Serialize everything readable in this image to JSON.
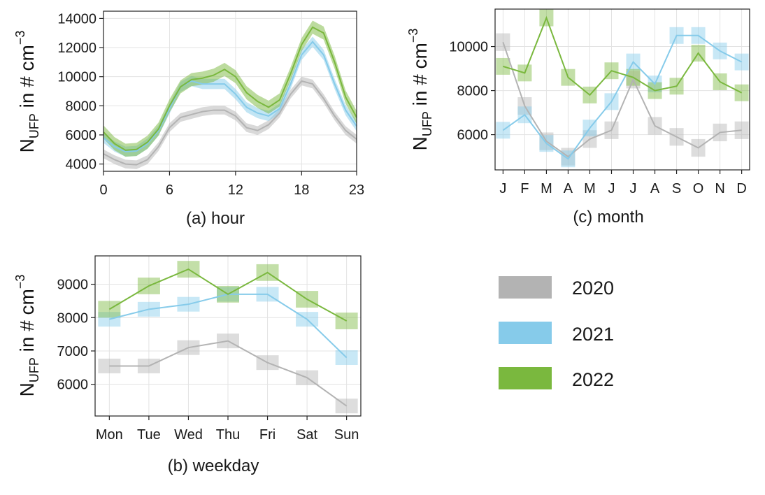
{
  "colors": {
    "2020": "#b3b3b3",
    "2021": "#86cbea",
    "2022": "#7ab83e"
  },
  "legend": {
    "position": "right-bottom",
    "items": [
      {
        "label": "2020",
        "color": "#b3b3b3"
      },
      {
        "label": "2021",
        "color": "#86cbea"
      },
      {
        "label": "2022",
        "color": "#7ab83e"
      }
    ]
  },
  "y_label": {
    "main": "N",
    "sub": "UFP",
    "mid": " in # cm",
    "sup": "−3"
  },
  "chart_data": [
    {
      "id": "hour",
      "type": "area",
      "panel_tag": "(a)",
      "xlabel": "hour",
      "ylabel": "N_UFP in # cm^-3",
      "x": [
        0,
        1,
        2,
        3,
        4,
        5,
        6,
        7,
        8,
        9,
        10,
        11,
        12,
        13,
        14,
        15,
        16,
        17,
        18,
        19,
        20,
        21,
        22,
        23
      ],
      "xticks": [
        0,
        6,
        12,
        18,
        23
      ],
      "xlim": [
        0,
        23
      ],
      "yticks": [
        4000,
        6000,
        8000,
        10000,
        12000,
        14000
      ],
      "ylim": [
        3500,
        14500
      ],
      "grid": true,
      "series": [
        {
          "name": "2020",
          "values": [
            4700,
            4300,
            4000,
            3950,
            4300,
            5200,
            6500,
            7200,
            7400,
            7600,
            7700,
            7700,
            7300,
            6500,
            6300,
            6700,
            7500,
            8800,
            9700,
            9500,
            8500,
            7300,
            6300,
            5700
          ],
          "band": 300
        },
        {
          "name": "2021",
          "values": [
            5800,
            5200,
            4850,
            4900,
            5400,
            6300,
            7800,
            9300,
            9700,
            9500,
            9500,
            9500,
            8800,
            7900,
            7500,
            7300,
            7800,
            9500,
            11500,
            12400,
            11500,
            9500,
            7700,
            6600
          ],
          "band": 350
        },
        {
          "name": "2022",
          "values": [
            6200,
            5400,
            4950,
            5000,
            5500,
            6400,
            8000,
            9300,
            9800,
            9900,
            10100,
            10500,
            10000,
            8900,
            8300,
            7900,
            8400,
            10200,
            12200,
            13400,
            13000,
            11000,
            8600,
            7200
          ],
          "band": 450
        }
      ]
    },
    {
      "id": "weekday",
      "type": "line",
      "panel_tag": "(b)",
      "xlabel": "weekday",
      "ylabel": "N_UFP in # cm^-3",
      "categories": [
        "Mon",
        "Tue",
        "Wed",
        "Thu",
        "Fri",
        "Sat",
        "Sun"
      ],
      "yticks": [
        6000,
        7000,
        8000,
        9000
      ],
      "ylim": [
        5050,
        9850
      ],
      "grid": true,
      "series": [
        {
          "name": "2020",
          "values": [
            6550,
            6550,
            7100,
            7300,
            6650,
            6200,
            5350
          ],
          "band": 220
        },
        {
          "name": "2021",
          "values": [
            7950,
            8250,
            8400,
            8700,
            8700,
            7950,
            6800
          ],
          "band": 220
        },
        {
          "name": "2022",
          "values": [
            8250,
            8950,
            9450,
            8700,
            9350,
            8550,
            7900
          ],
          "band": 250
        }
      ]
    },
    {
      "id": "month",
      "type": "line",
      "panel_tag": "(c)",
      "xlabel": "month",
      "ylabel": "N_UFP in # cm^-3",
      "categories": [
        "J",
        "F",
        "M",
        "A",
        "M",
        "J",
        "J",
        "A",
        "S",
        "O",
        "N",
        "D"
      ],
      "yticks": [
        6000,
        8000,
        10000
      ],
      "ylim": [
        4400,
        11700
      ],
      "grid": true,
      "series": [
        {
          "name": "2020",
          "values": [
            10200,
            7300,
            5700,
            5000,
            5800,
            6200,
            8500,
            6400,
            5900,
            5400,
            6100,
            6200
          ],
          "band": 400
        },
        {
          "name": "2021",
          "values": [
            6200,
            6900,
            5600,
            4900,
            6300,
            7500,
            9300,
            8300,
            10500,
            10500,
            9800,
            9300
          ],
          "band": 380
        },
        {
          "name": "2022",
          "values": [
            9100,
            8800,
            11300,
            8600,
            7800,
            8900,
            8600,
            8000,
            8200,
            9700,
            8400,
            7900
          ],
          "band": 380
        }
      ]
    }
  ]
}
